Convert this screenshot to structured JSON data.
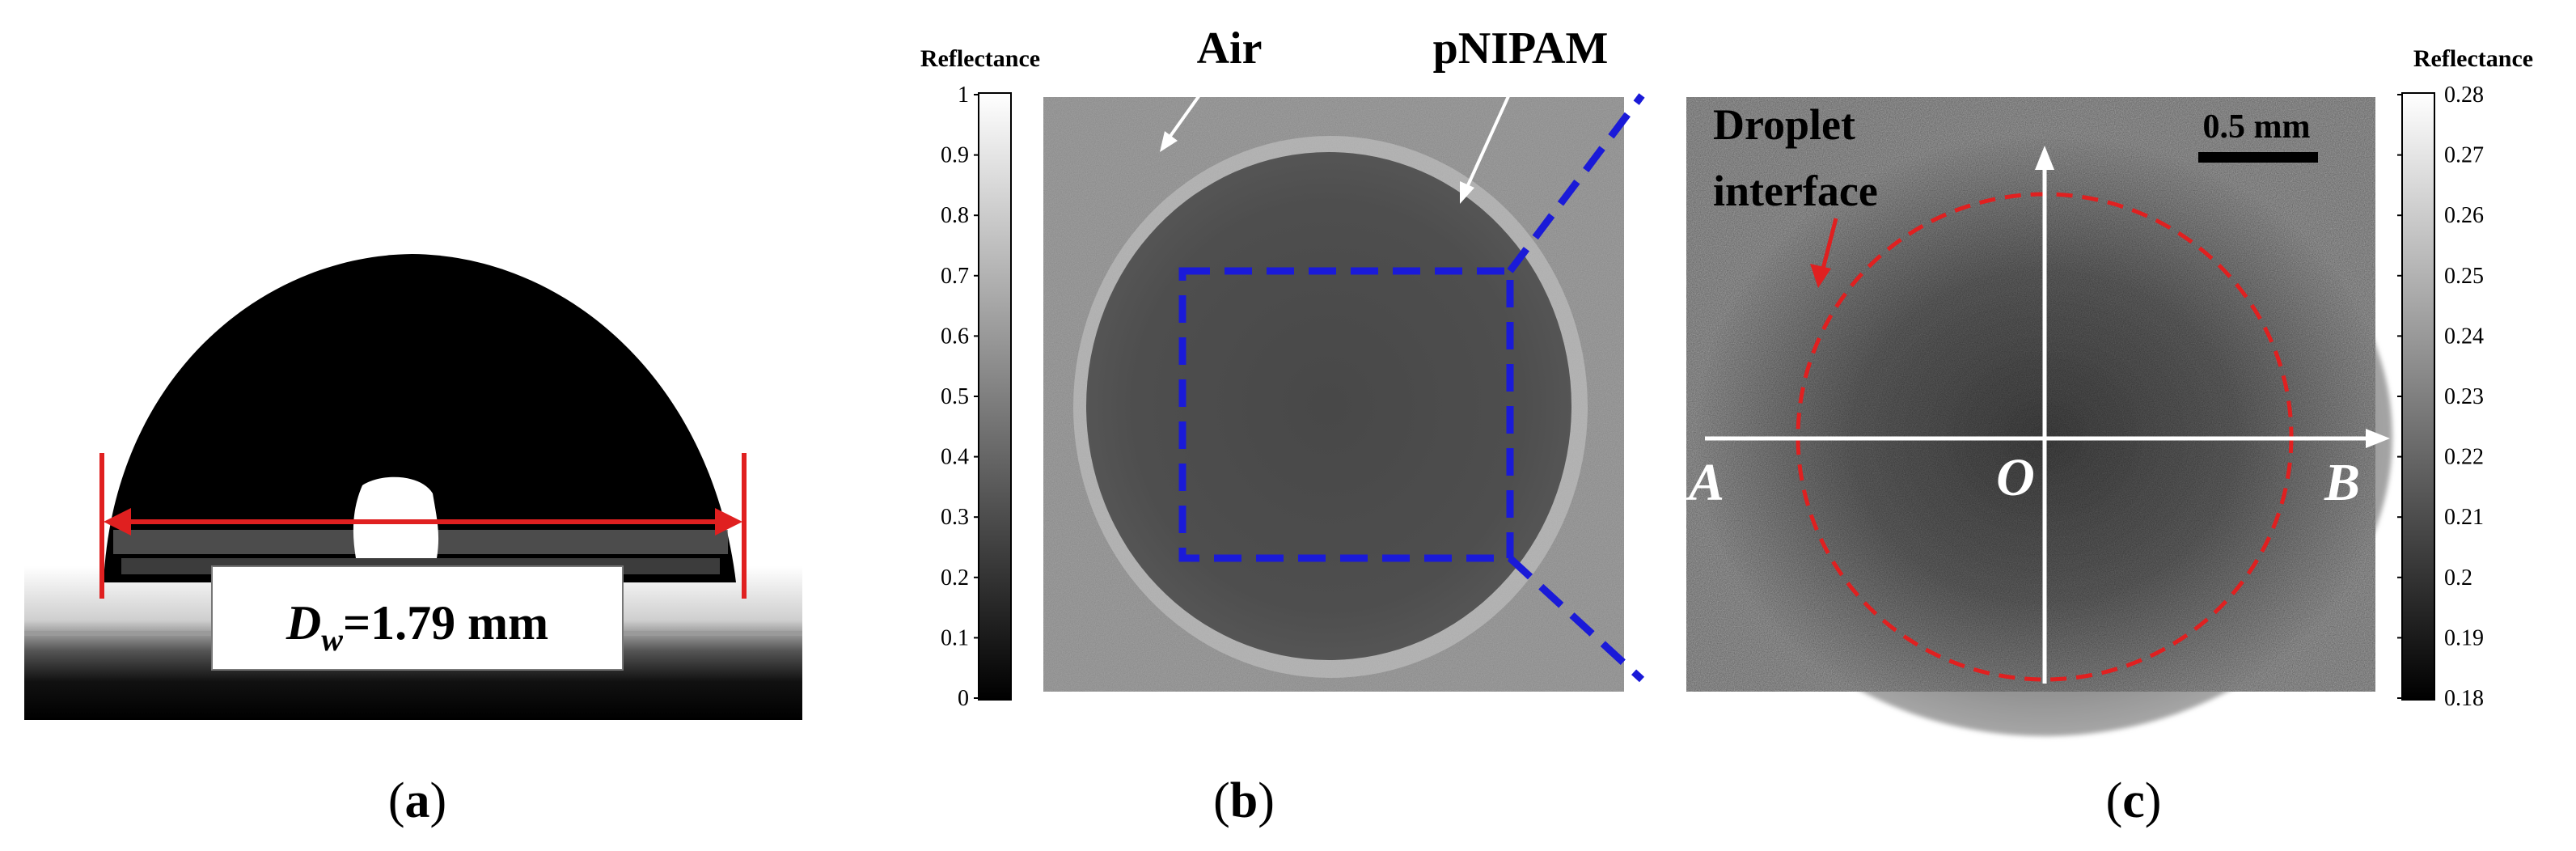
{
  "panel_a": {
    "label": "a",
    "diameter_symbol": "D",
    "diameter_subscript": "w",
    "diameter_value": "=1.79 mm"
  },
  "panel_b": {
    "label": "b",
    "colorbar_title": "Reflectance",
    "colorbar_ticks": [
      "1",
      "0.9",
      "0.8",
      "0.7",
      "0.6",
      "0.5",
      "0.4",
      "0.3",
      "0.2",
      "0.1",
      "0"
    ],
    "annotation_air": "Air",
    "annotation_pnipam": "pNIPAM"
  },
  "panel_c": {
    "label": "c",
    "colorbar_title": "Reflectance",
    "colorbar_ticks": [
      "0.28",
      "0.27",
      "0.26",
      "0.25",
      "0.24",
      "0.23",
      "0.22",
      "0.21",
      "0.2",
      "0.19",
      "0.18"
    ],
    "annotation_line1": "Droplet",
    "annotation_line2": "interface",
    "scale_bar_label": "0.5 mm",
    "point_A": "A",
    "point_O": "O",
    "point_B": "B"
  },
  "colors": {
    "highlight_red": "#e02020",
    "zoom_box_blue": "#1a1ad8",
    "axis_white": "#ffffff"
  }
}
